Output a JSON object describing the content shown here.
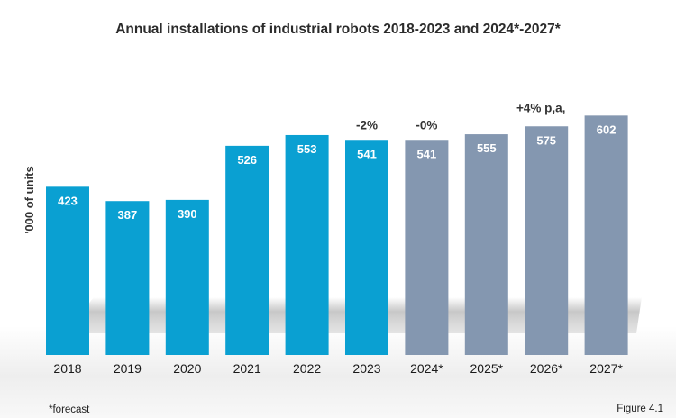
{
  "chart_data": {
    "type": "bar",
    "title": "Annual installations of industrial robots 2018-2023 and 2024*-2027*",
    "ylabel": "'000 of units",
    "xlabel": "",
    "categories": [
      "2018",
      "2019",
      "2020",
      "2021",
      "2022",
      "2023",
      "2024*",
      "2025*",
      "2026*",
      "2027*"
    ],
    "values": [
      423,
      387,
      390,
      526,
      553,
      541,
      541,
      555,
      575,
      602
    ],
    "value_labels": [
      "423",
      "387",
      "390",
      "526",
      "553",
      "541",
      "541",
      "555",
      "575",
      "602"
    ],
    "forecast": [
      false,
      false,
      false,
      false,
      false,
      false,
      true,
      true,
      true,
      true
    ],
    "colors": {
      "actual": "#0aa0d2",
      "forecast": "#8497b0"
    },
    "annotations": [
      {
        "text": "-2%",
        "category": "2023"
      },
      {
        "text": "-0%",
        "category": "2024*"
      },
      {
        "text": "+4% p,a,",
        "category": "2026*"
      }
    ],
    "grid": false,
    "legend": "none",
    "footnote": "*forecast",
    "figure_label": "Figure 4.1"
  }
}
